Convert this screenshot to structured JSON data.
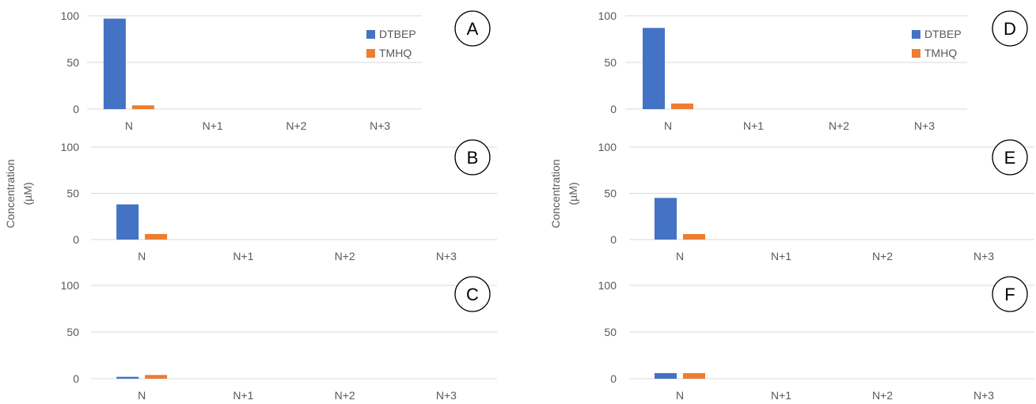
{
  "y_axis_label": [
    "Concentration",
    "(µM)"
  ],
  "colors": {
    "DTBEP": "#4472C4",
    "TMHQ": "#ED7D31",
    "grid": "#D9D9D9",
    "text": "#595959",
    "panel_letter": "#000000"
  },
  "chart_data": [
    {
      "panel": "A",
      "type": "bar",
      "categories": [
        "N",
        "N+1",
        "N+2",
        "N+3"
      ],
      "yticks": [
        0,
        50,
        100
      ],
      "ylim": [
        0,
        100
      ],
      "series": [
        {
          "name": "DTBEP",
          "values": [
            97,
            0,
            0,
            0
          ]
        },
        {
          "name": "TMHQ",
          "values": [
            4,
            0,
            0,
            0
          ]
        }
      ],
      "legend": "right",
      "grid": true
    },
    {
      "panel": "B",
      "type": "bar",
      "categories": [
        "N",
        "N+1",
        "N+2",
        "N+3"
      ],
      "yticks": [
        0,
        50,
        100
      ],
      "ylim": [
        0,
        100
      ],
      "series": [
        {
          "name": "DTBEP",
          "values": [
            38,
            0,
            0,
            0
          ]
        },
        {
          "name": "TMHQ",
          "values": [
            6,
            0,
            0,
            0
          ]
        }
      ],
      "grid": true
    },
    {
      "panel": "C",
      "type": "bar",
      "categories": [
        "N",
        "N+1",
        "N+2",
        "N+3"
      ],
      "yticks": [
        0,
        50,
        100
      ],
      "ylim": [
        0,
        100
      ],
      "series": [
        {
          "name": "DTBEP",
          "values": [
            2,
            0,
            0,
            0
          ]
        },
        {
          "name": "TMHQ",
          "values": [
            4,
            0,
            0,
            0
          ]
        }
      ],
      "grid": true
    },
    {
      "panel": "D",
      "type": "bar",
      "categories": [
        "N",
        "N+1",
        "N+2",
        "N+3"
      ],
      "yticks": [
        0,
        50,
        100
      ],
      "ylim": [
        0,
        100
      ],
      "series": [
        {
          "name": "DTBEP",
          "values": [
            87,
            0,
            0,
            0
          ]
        },
        {
          "name": "TMHQ",
          "values": [
            6,
            0,
            0,
            0
          ]
        }
      ],
      "legend": "right",
      "grid": true
    },
    {
      "panel": "E",
      "type": "bar",
      "categories": [
        "N",
        "N+1",
        "N+2",
        "N+3"
      ],
      "yticks": [
        0,
        50,
        100
      ],
      "ylim": [
        0,
        100
      ],
      "series": [
        {
          "name": "DTBEP",
          "values": [
            45,
            0,
            0,
            0
          ]
        },
        {
          "name": "TMHQ",
          "values": [
            6,
            0,
            0,
            0
          ]
        }
      ],
      "grid": true
    },
    {
      "panel": "F",
      "type": "bar",
      "categories": [
        "N",
        "N+1",
        "N+2",
        "N+3"
      ],
      "yticks": [
        0,
        50,
        100
      ],
      "ylim": [
        0,
        100
      ],
      "series": [
        {
          "name": "DTBEP",
          "values": [
            6,
            0,
            0,
            0
          ]
        },
        {
          "name": "TMHQ",
          "values": [
            6,
            0,
            0,
            0
          ]
        }
      ],
      "grid": true
    }
  ]
}
